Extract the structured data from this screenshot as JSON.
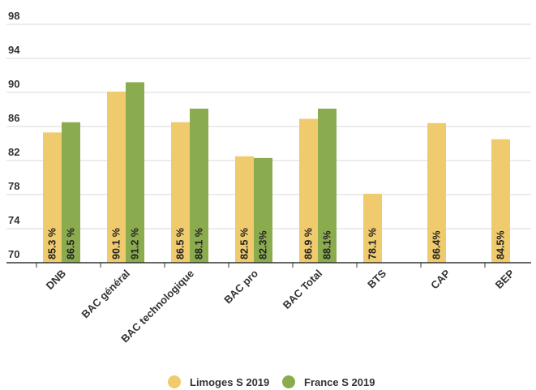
{
  "chart_data": {
    "type": "bar",
    "title": "",
    "xlabel": "",
    "ylabel": "",
    "ylim": [
      70,
      99
    ],
    "yticks": [
      70,
      74,
      78,
      82,
      86,
      90,
      94,
      98
    ],
    "grid": true,
    "legend_position": "bottom",
    "categories": [
      "DNB",
      "BAC général",
      "BAC technologique",
      "BAC pro",
      "BAC Total",
      "BTS",
      "CAP",
      "BEP"
    ],
    "series": [
      {
        "name": "Limoges S 2019",
        "color": "#f0cb6e",
        "values": [
          85.3,
          90.1,
          86.5,
          82.5,
          86.9,
          78.1,
          86.4,
          84.5
        ],
        "labels": [
          "85.3 %",
          "90.1 %",
          "86.5 %",
          "82.5 %",
          "86.9 %",
          "78.1 %",
          "86.4%",
          "84.5%"
        ]
      },
      {
        "name": "France S 2019",
        "color": "#8bab4f",
        "values": [
          86.5,
          91.2,
          88.1,
          82.3,
          88.1,
          null,
          null,
          null
        ],
        "labels": [
          "86.5 %",
          "91.2 %",
          "88.1 %",
          "82.3%",
          "88.1%",
          "",
          "",
          ""
        ]
      }
    ]
  }
}
